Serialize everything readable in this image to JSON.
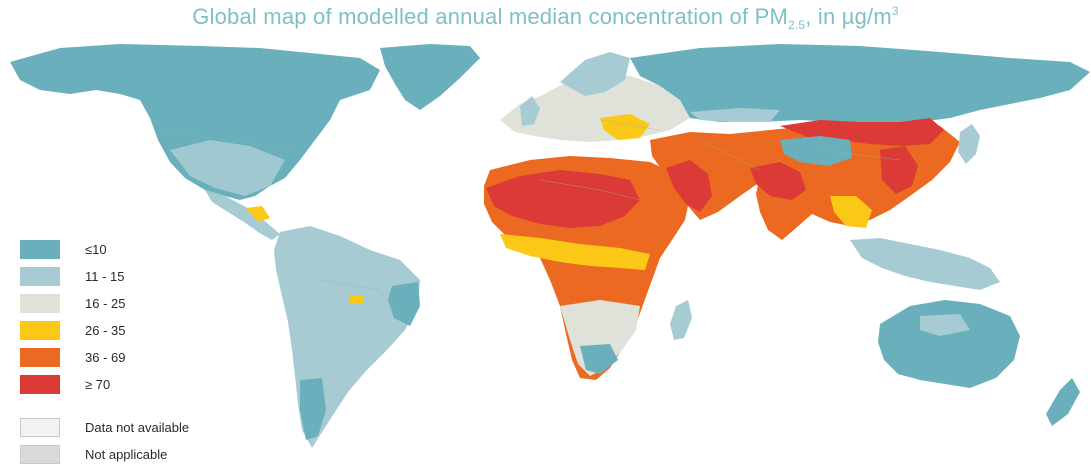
{
  "title": {
    "main": "Global map of modelled annual median concentration of PM",
    "subscript": "2.5",
    "comma": ",",
    "unit_prefix": " in µg/m",
    "unit_superscript": "3"
  },
  "colors": {
    "ocean": "#ffffff",
    "le10": "#6aafbc",
    "c11_15": "#a6cbd3",
    "c16_25": "#dfe2d9",
    "c26_35": "#fcc818",
    "c36_69": "#ec6922",
    "ge70": "#db3a36",
    "not_available": "#f2f2f2",
    "not_applicable": "#d9dadc",
    "border": "#9ab0b4"
  },
  "legend": [
    {
      "label": "≤10",
      "color": "#6aafbc",
      "outlined": false
    },
    {
      "label": "11 - 15",
      "color": "#a6cbd3",
      "outlined": false
    },
    {
      "label": "16 - 25",
      "color": "#dfe2d9",
      "outlined": false
    },
    {
      "label": "26 - 35",
      "color": "#fcc818",
      "outlined": false
    },
    {
      "label": "36 - 69",
      "color": "#ec6922",
      "outlined": false
    },
    {
      "label": "≥ 70",
      "color": "#db3a36",
      "outlined": false
    },
    {
      "label": "Data not available",
      "color": "#f2f2f2",
      "outlined": true
    },
    {
      "label": "Not applicable",
      "color": "#d9dadc",
      "outlined": true
    }
  ]
}
